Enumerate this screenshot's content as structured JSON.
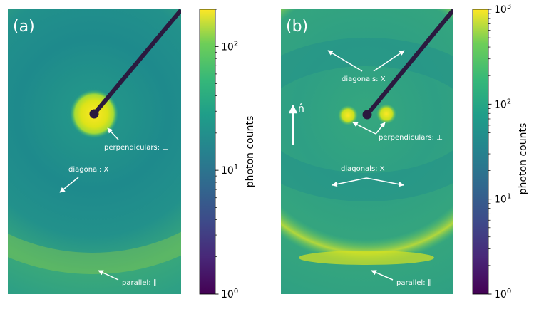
{
  "chart_data": [
    {
      "type": "heatmap",
      "panel_label": "(a)",
      "colorbar": {
        "label": "photon counts",
        "scale": "log",
        "range": [
          1,
          200
        ],
        "ticks": [
          {
            "value": 1,
            "base": "10",
            "exp": "0"
          },
          {
            "value": 10,
            "base": "10",
            "exp": "1"
          },
          {
            "value": 100,
            "base": "10",
            "exp": "2"
          }
        ]
      },
      "annotations": [
        {
          "id": "a-perp",
          "text": "perpendiculars: ⊥"
        },
        {
          "id": "a-diag",
          "text": "diagonal: X"
        },
        {
          "id": "a-par",
          "text": "parallel: ∥"
        }
      ]
    },
    {
      "type": "heatmap",
      "panel_label": "(b)",
      "director_label": "n̂",
      "colorbar": {
        "label": "photon counts",
        "scale": "log",
        "range": [
          1,
          1000
        ],
        "ticks": [
          {
            "value": 1,
            "base": "10",
            "exp": "0"
          },
          {
            "value": 10,
            "base": "10",
            "exp": "1"
          },
          {
            "value": 100,
            "base": "10",
            "exp": "2"
          },
          {
            "value": 1000,
            "base": "10",
            "exp": "3"
          }
        ]
      },
      "annotations": [
        {
          "id": "b-diag-top",
          "text": "diagonals: X"
        },
        {
          "id": "b-perp",
          "text": "perpendiculars: ⊥"
        },
        {
          "id": "b-diag-bot",
          "text": "diagonals: X"
        },
        {
          "id": "b-par",
          "text": "parallel: ∥"
        }
      ]
    }
  ],
  "colors": {
    "viridis_low": "#440154",
    "viridis_mid": "#21918c",
    "viridis_high": "#fde725",
    "background": "#2a9c84",
    "annotation": "#ffffff"
  }
}
